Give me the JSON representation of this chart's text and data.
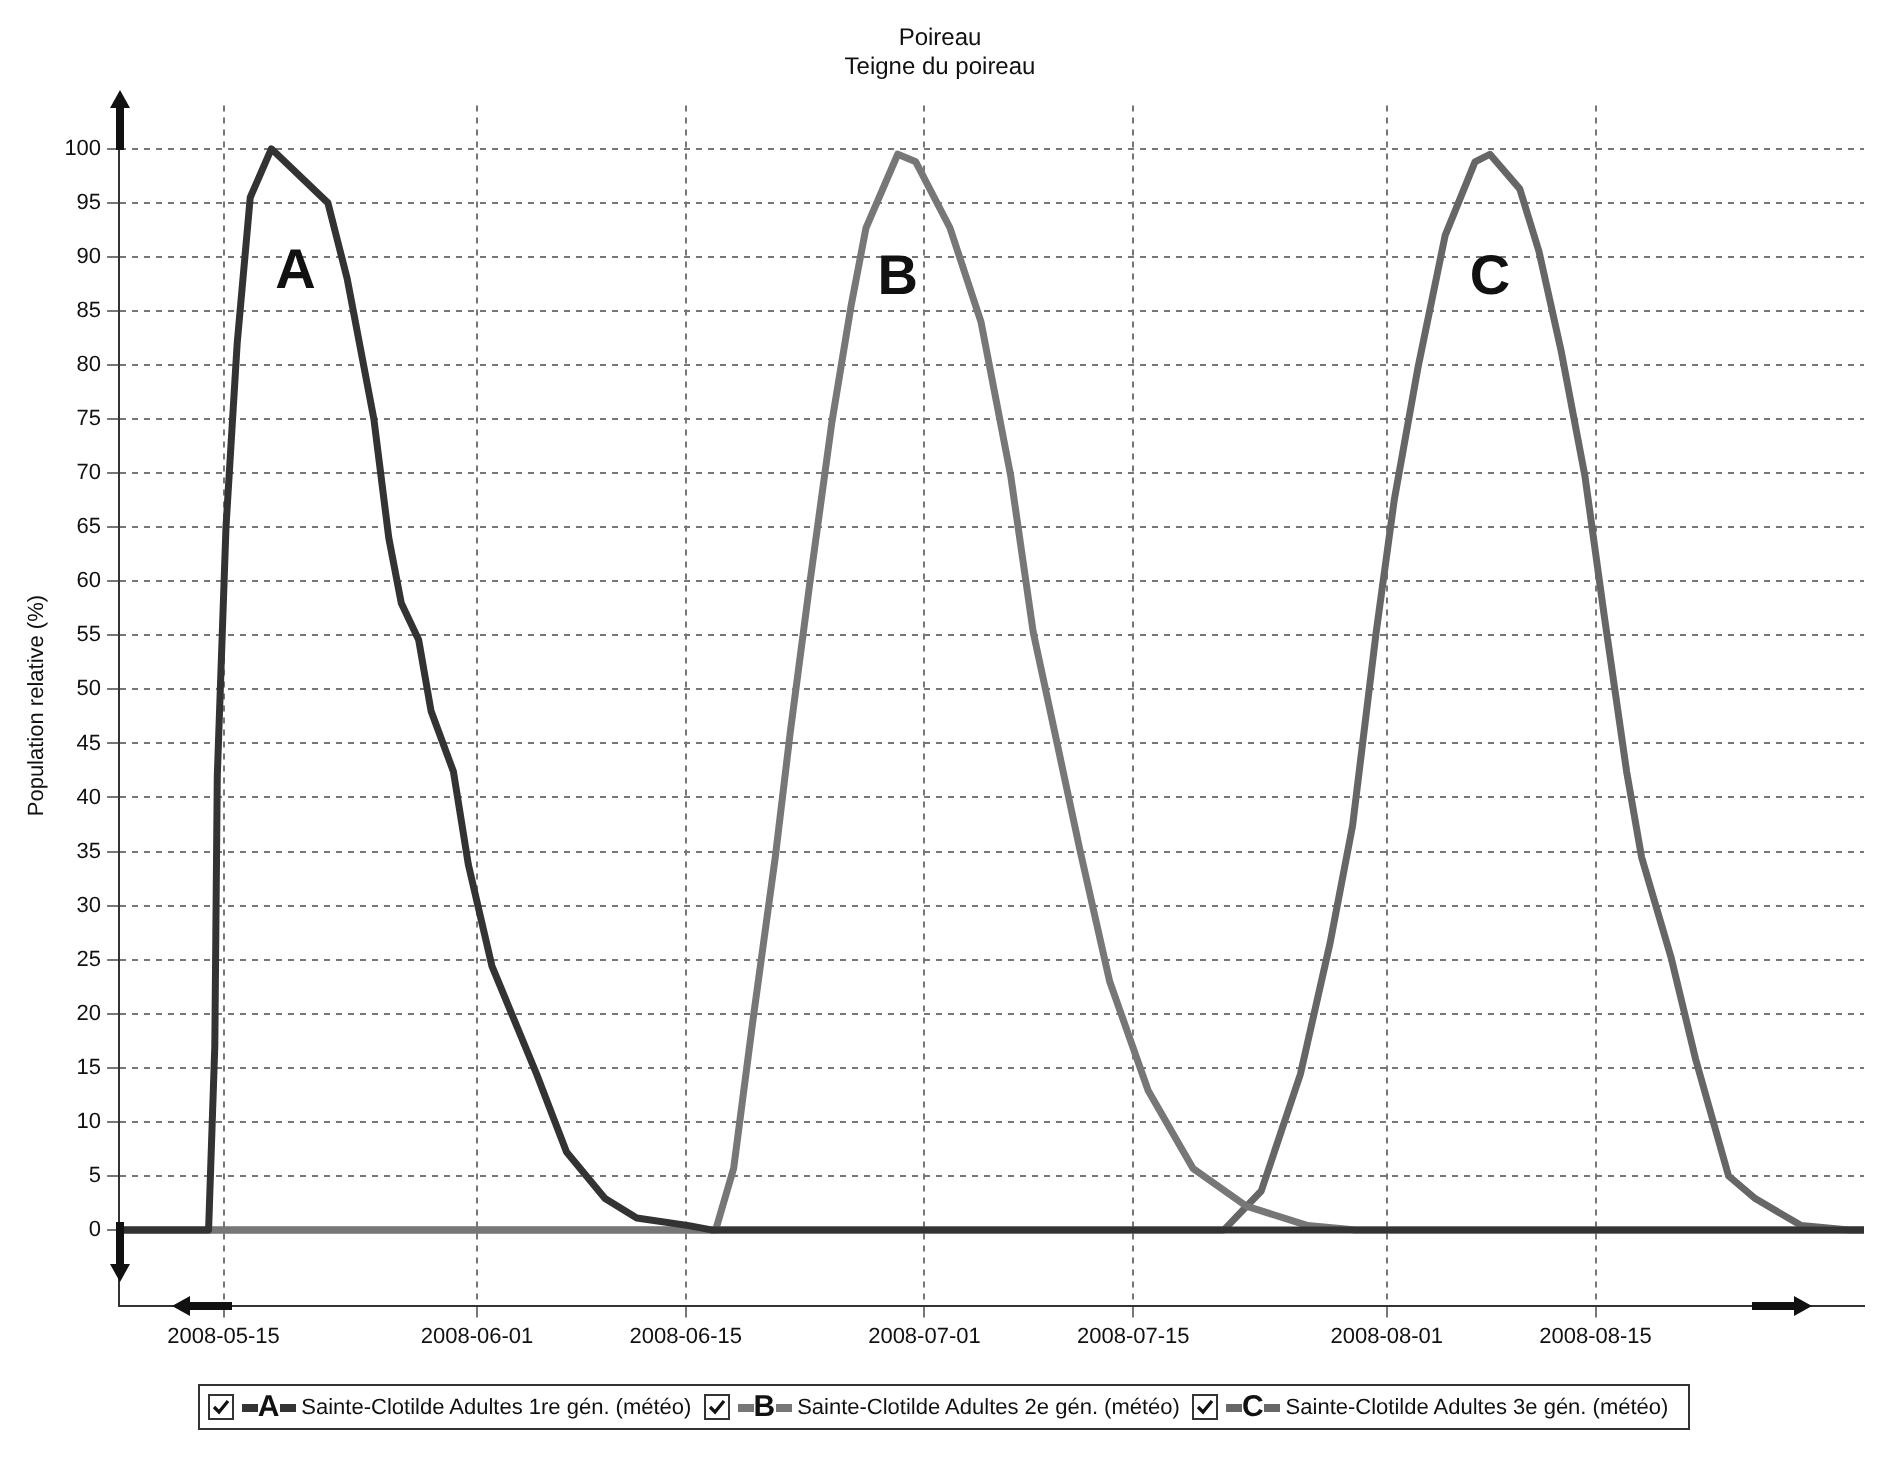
{
  "chart_data": {
    "type": "line",
    "title": "Poireau",
    "subtitle": "Teigne du poireau",
    "ylabel": "Population relative (%)",
    "xlim": [
      "2008-05-08",
      "2008-09-02"
    ],
    "xticks": [
      "2008-05-15",
      "2008-06-01",
      "2008-06-15",
      "2008-07-01",
      "2008-07-15",
      "2008-08-01",
      "2008-08-15"
    ],
    "ylim": [
      -7,
      104
    ],
    "yticks": [
      0,
      5,
      10,
      15,
      20,
      25,
      30,
      35,
      40,
      45,
      50,
      55,
      60,
      65,
      70,
      75,
      80,
      85,
      90,
      95,
      100
    ],
    "grid": true,
    "legend": "bottom",
    "marker": "none",
    "line_style": "solid",
    "annotations": [
      "A",
      "B",
      "C"
    ],
    "series": [
      {
        "name": "Sainte-Clotilde Adultes 1re gén. (météo)",
        "color": "#333333",
        "x": [
          "2008-05-08",
          "2008-05-14",
          "2008-05-14T10:00",
          "2008-05-14T14:00",
          "2008-05-15T04:00",
          "2008-05-15T22:00",
          "2008-05-16T19:00",
          "2008-05-18T05:00",
          "2008-05-22",
          "2008-05-23T07:00",
          "2008-05-25T02:00",
          "2008-05-26T02:00",
          "2008-05-26T22:00",
          "2008-05-28T02:00",
          "2008-05-28T22:00",
          "2008-05-30T10:00",
          "2008-05-31T10:00",
          "2008-06-02",
          "2008-06-05",
          "2008-06-07",
          "2008-06-09T14:00",
          "2008-06-11T17:00",
          "2008-06-15T05:00",
          "2008-06-16T17:00",
          "2008-09-02"
        ],
        "values": [
          0,
          0,
          17,
          42,
          65,
          82,
          95.5,
          100,
          95,
          88,
          75,
          64,
          58,
          54.6,
          48,
          42.4,
          33.8,
          24.4,
          14.4,
          7.2,
          2.9,
          1.1,
          0.4,
          0,
          0
        ]
      },
      {
        "name": "Sainte-Clotilde Adultes 2e gén. (météo)",
        "color": "#777777",
        "x": [
          "2008-05-08",
          "2008-06-17",
          "2008-06-18T05:00",
          "2008-06-19T12:00",
          "2008-06-21",
          "2008-06-22",
          "2008-06-23T07:00",
          "2008-06-24T19:00",
          "2008-06-26T02:00",
          "2008-06-27T02:00",
          "2008-06-29T05:00",
          "2008-06-30T10:00",
          "2008-07-02T17:00",
          "2008-07-04T19:00",
          "2008-07-06T19:00",
          "2008-07-08T07:00",
          "2008-07-09T10:00",
          "2008-07-11T10:00",
          "2008-07-13T10:00",
          "2008-07-16",
          "2008-07-19",
          "2008-07-22T14:00",
          "2008-07-26T17:00",
          "2008-07-29T22:00",
          "2008-09-02"
        ],
        "values": [
          0,
          0,
          5.7,
          19.4,
          34.5,
          46,
          59.6,
          74.7,
          85.5,
          92.7,
          99.5,
          98.8,
          92.7,
          84,
          69.7,
          55.3,
          48.1,
          35.2,
          23,
          12.9,
          5.7,
          2.2,
          0.4,
          0,
          0
        ]
      },
      {
        "name": "Sainte-Clotilde Adultes 3e gén. (météo)",
        "color": "#666666",
        "x": [
          "2008-05-08",
          "2008-07-21T02:00",
          "2008-07-23T14:00",
          "2008-07-26T05:00",
          "2008-07-28T05:00",
          "2008-07-29T17:00",
          "2008-07-31T07:00",
          "2008-08-01T12:00",
          "2008-08-03T02:00",
          "2008-08-04T22:00",
          "2008-08-06T22:00",
          "2008-08-07T22:00",
          "2008-08-09T22:00",
          "2008-08-11T05:00",
          "2008-08-12T17:00",
          "2008-08-14T07:00",
          "2008-08-15T14:00",
          "2008-08-17T02:00",
          "2008-08-18T02:00",
          "2008-08-20T02:00",
          "2008-08-21T17:00",
          "2008-08-23T22:00",
          "2008-08-25T17:00",
          "2008-08-28T19:00",
          "2008-09-01",
          "2008-09-02"
        ],
        "values": [
          0,
          0,
          3.6,
          14.4,
          26.6,
          37.4,
          55.3,
          67.5,
          79.7,
          92,
          98.8,
          99.5,
          96.3,
          90.5,
          81.2,
          69.7,
          56.8,
          42.4,
          34.5,
          25.1,
          15.8,
          5,
          2.9,
          0.4,
          0,
          0
        ]
      }
    ]
  }
}
